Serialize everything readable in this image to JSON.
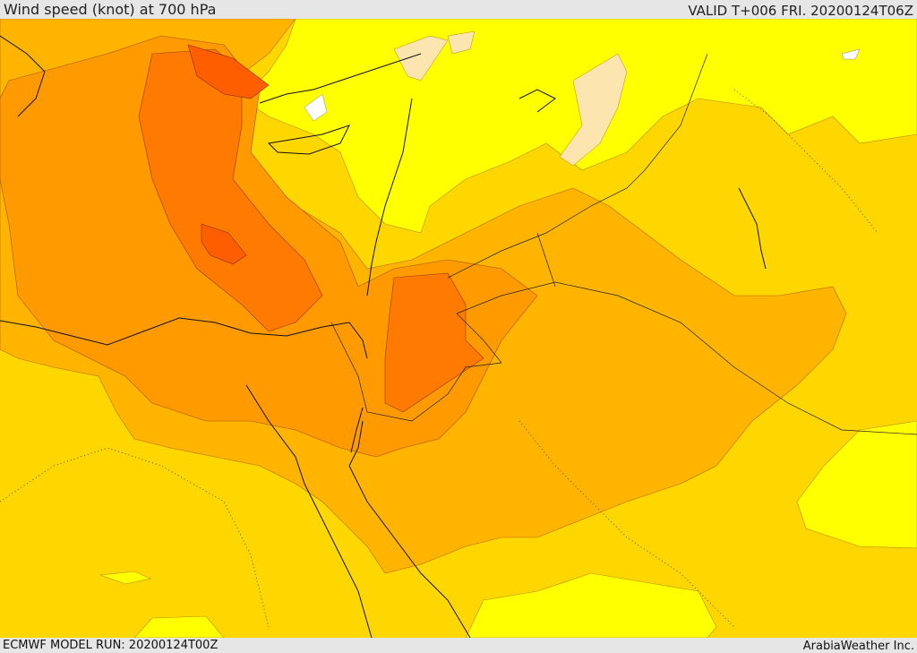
{
  "header": {
    "title": "Wind speed (knot) at 700 hPa",
    "valid_time": "VALID T+006 FRI. 20200124T06Z"
  },
  "footer": {
    "model_run": "ECMWF MODEL RUN: 20200124T00Z",
    "credit": "ArabiaWeather Inc."
  },
  "map": {
    "variable": "wind speed",
    "level": "700 hPa",
    "unit": "knot",
    "fill_colors": {
      "lightest": "#ffff00",
      "light": "#ffd700",
      "medium": "#ffb500",
      "strong": "#ff9a00",
      "stronger": "#ff7a00",
      "strongest": "#ff5e00",
      "calm_pale": "#fde5b0",
      "calm_white": "#ffffff"
    }
  }
}
